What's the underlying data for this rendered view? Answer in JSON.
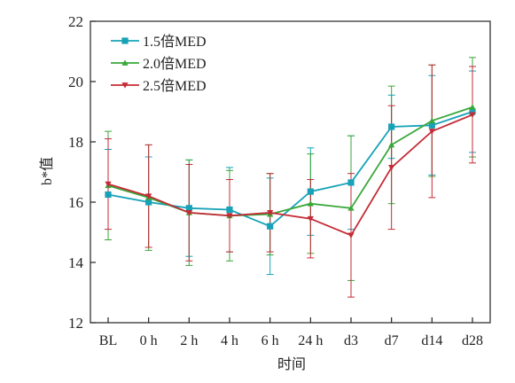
{
  "chart_data": {
    "type": "line",
    "title": "",
    "xlabel": "时间",
    "ylabel": "b*值",
    "ylim": [
      12,
      22
    ],
    "yticks": [
      12,
      14,
      16,
      18,
      20,
      22
    ],
    "categories": [
      "BL",
      "0 h",
      "2 h",
      "4 h",
      "6 h",
      "24 h",
      "d3",
      "d7",
      "d14",
      "d28"
    ],
    "grid": false,
    "legend_position": "top-left",
    "series": [
      {
        "name": "1.5倍MED",
        "color": "#17a2b8",
        "marker": "square",
        "values": [
          16.25,
          16.0,
          15.8,
          15.75,
          15.2,
          16.35,
          16.65,
          18.5,
          18.55,
          19.0
        ],
        "errors": [
          1.5,
          1.5,
          1.6,
          1.4,
          1.6,
          1.45,
          1.55,
          1.05,
          1.65,
          1.35
        ]
      },
      {
        "name": "2.0倍MED",
        "color": "#3aa73a",
        "marker": "triangle-up",
        "values": [
          16.55,
          16.15,
          15.65,
          15.55,
          15.6,
          15.95,
          15.8,
          17.9,
          18.7,
          19.15
        ],
        "errors": [
          1.8,
          1.75,
          1.75,
          1.5,
          1.35,
          1.65,
          2.4,
          1.95,
          1.85,
          1.65
        ]
      },
      {
        "name": "2.5倍MED",
        "color": "#c42b36",
        "marker": "triangle-down",
        "values": [
          16.6,
          16.2,
          15.65,
          15.55,
          15.65,
          15.45,
          14.9,
          17.15,
          18.35,
          18.9
        ],
        "errors": [
          1.5,
          1.7,
          1.6,
          1.2,
          1.3,
          1.3,
          2.05,
          2.05,
          2.2,
          1.6
        ]
      }
    ]
  }
}
